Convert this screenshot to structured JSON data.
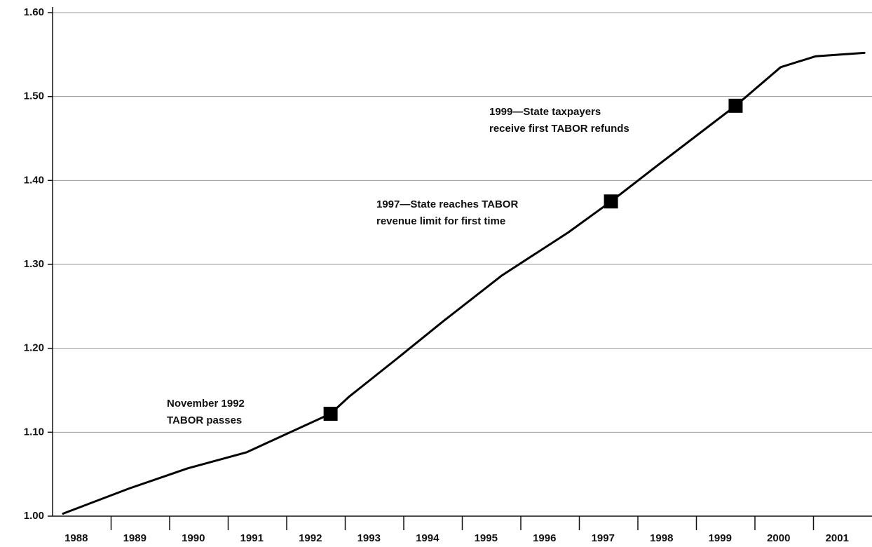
{
  "chart_data": {
    "type": "line",
    "xlim": [
      1988,
      2002
    ],
    "xticks": [
      1988,
      1989,
      1990,
      1991,
      1992,
      1993,
      1994,
      1995,
      1996,
      1997,
      1998,
      1999,
      2000,
      2001
    ],
    "ylim": [
      1.0,
      1.6
    ],
    "yticks": [
      {
        "value": 1.0,
        "label": "1.00"
      },
      {
        "value": 1.1,
        "label": "1.10"
      },
      {
        "value": 1.2,
        "label": "1.20"
      },
      {
        "value": 1.3,
        "label": "1.30"
      },
      {
        "value": 1.4,
        "label": "1.40"
      },
      {
        "value": 1.5,
        "label": "1.50"
      },
      {
        "value": 1.6,
        "label": "1.60"
      }
    ],
    "grid": true,
    "series": [
      {
        "color": "#000000",
        "x": [
          1988.18,
          1989.31,
          1990.31,
          1991.31,
          1992.75,
          1993.06,
          1993.89,
          1994.67,
          1995.68,
          1996.81,
          1997.54,
          1998.3,
          1999.67,
          2000.44,
          2001.04,
          2001.87
        ],
        "values": [
          1.003,
          1.033,
          1.057,
          1.076,
          1.122,
          1.142,
          1.188,
          1.232,
          1.287,
          1.338,
          1.375,
          1.416,
          1.489,
          1.535,
          1.548,
          1.552
        ]
      },
      {
        "color": "#000000",
        "marker": "square",
        "x": [
          1992.75,
          1997.54,
          1999.67
        ],
        "values": [
          1.122,
          1.375,
          1.489
        ]
      }
    ],
    "annotations": [
      {
        "lines": [
          "November 1992",
          "TABOR passes"
        ]
      },
      {
        "lines": [
          "1997—State reaches TABOR",
          "revenue limit for first time"
        ]
      },
      {
        "lines": [
          "1999—State taxpayers",
          "receive first TABOR refunds"
        ]
      }
    ]
  }
}
